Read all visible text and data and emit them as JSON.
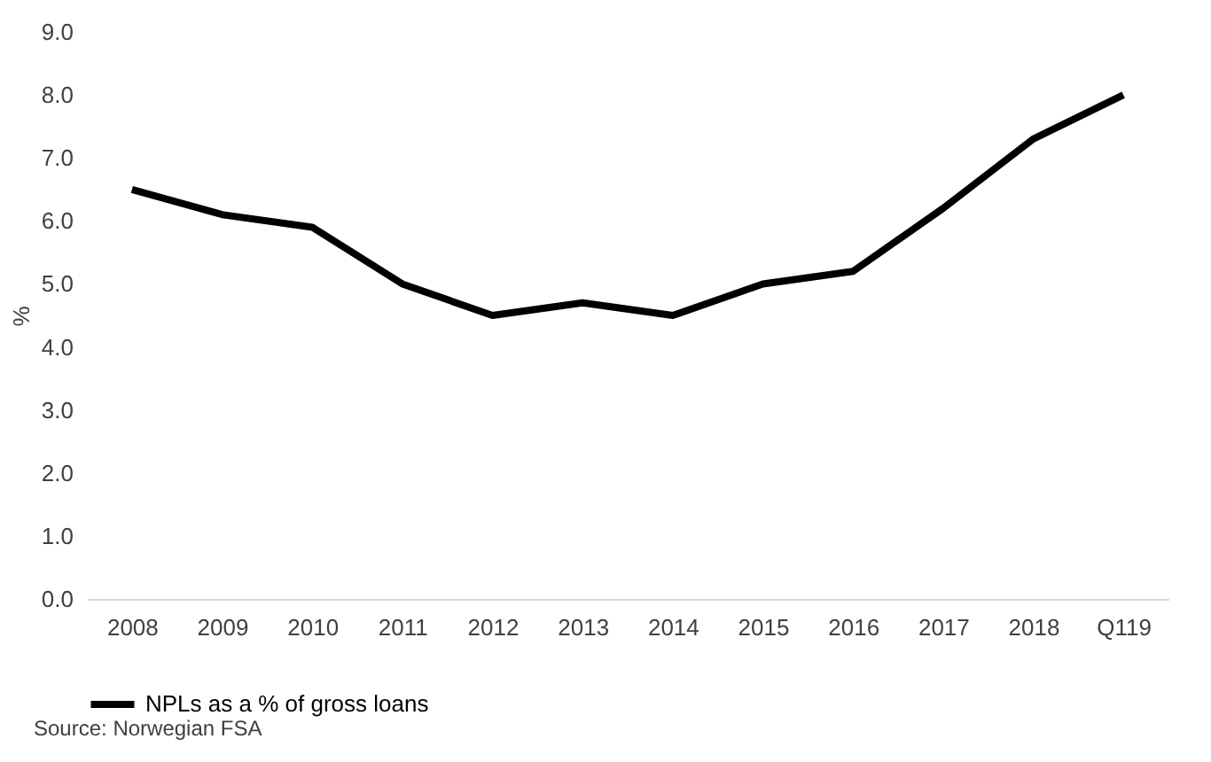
{
  "chart_data": {
    "type": "line",
    "categories": [
      "2008",
      "2009",
      "2010",
      "2011",
      "2012",
      "2013",
      "2014",
      "2015",
      "2016",
      "2017",
      "2018",
      "Q119"
    ],
    "series": [
      {
        "name": "NPLs as a % of gross loans",
        "color": "#000000",
        "values": [
          6.5,
          6.1,
          5.9,
          5.0,
          4.5,
          4.7,
          4.5,
          5.0,
          5.2,
          6.2,
          7.3,
          8.0
        ]
      }
    ],
    "ylabel": "%",
    "ylim": [
      0.0,
      9.0
    ],
    "yticks": [
      {
        "value": 0,
        "label": "0.0"
      },
      {
        "value": 1,
        "label": "1.0"
      },
      {
        "value": 2,
        "label": "2.0"
      },
      {
        "value": 3,
        "label": "3.0"
      },
      {
        "value": 4,
        "label": "4.0"
      },
      {
        "value": 5,
        "label": "5.0"
      },
      {
        "value": 6,
        "label": "6.0"
      },
      {
        "value": 7,
        "label": "7.0"
      },
      {
        "value": 8,
        "label": "8.0"
      },
      {
        "value": 9,
        "label": "9.0"
      }
    ],
    "grid": false,
    "legend": "bottom",
    "marker": "none",
    "line_style": "solid",
    "annotations": [
      "Source: Norwegian FSA"
    ]
  }
}
